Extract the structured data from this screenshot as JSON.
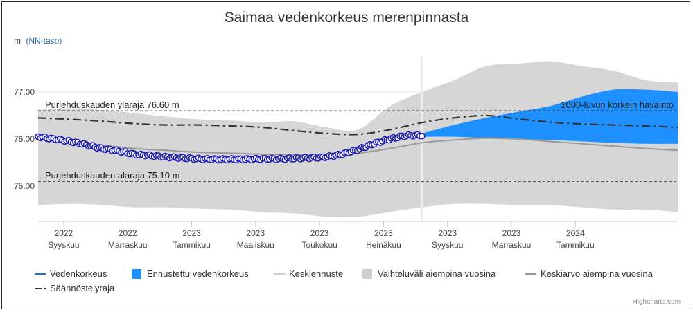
{
  "chart_data": {
    "type": "area",
    "title": "Saimaa vedenkorkeus merenpinnasta",
    "yunit": "m",
    "yunit_note": "(NN-taso)",
    "ylim": [
      74.25,
      77.75
    ],
    "yticks": [
      "75.00",
      "76.00",
      "77.00"
    ],
    "ytick_values": [
      75.0,
      76.0,
      77.0
    ],
    "x_range_months": [
      0,
      20
    ],
    "x_months": [
      0,
      1,
      2,
      3,
      4,
      5,
      6,
      7,
      8,
      9,
      10,
      11,
      12,
      13,
      14,
      15,
      16,
      17,
      18,
      19,
      20
    ],
    "xticks": [
      {
        "year": "2022",
        "month": "Syyskuu"
      },
      {
        "year": "2022",
        "month": "Marraskuu"
      },
      {
        "year": "2023",
        "month": "Tammikuu"
      },
      {
        "year": "2023",
        "month": "Maaliskuu"
      },
      {
        "year": "2023",
        "month": "Toukokuu"
      },
      {
        "year": "2023",
        "month": "Heinäkuu"
      },
      {
        "year": "2023",
        "month": "Syyskuu"
      },
      {
        "year": "2023",
        "month": "Marraskuu"
      },
      {
        "year": "2024",
        "month": "Tammikuu"
      }
    ],
    "xtick_months": [
      0.8,
      2.8,
      4.8,
      6.8,
      8.8,
      10.8,
      12.8,
      14.8,
      16.8
    ],
    "today_month": 12.0,
    "range_upper": [
      76.62,
      76.65,
      76.62,
      76.55,
      76.48,
      76.42,
      76.4,
      76.35,
      76.38,
      76.25,
      76.2,
      76.7,
      77.0,
      77.25,
      77.55,
      77.6,
      77.65,
      77.55,
      77.45,
      77.25,
      77.2
    ],
    "range_lower": [
      74.6,
      74.62,
      74.6,
      74.55,
      74.55,
      74.52,
      74.5,
      74.45,
      74.42,
      74.35,
      74.35,
      74.45,
      74.55,
      74.62,
      74.62,
      74.6,
      74.6,
      74.55,
      74.5,
      74.5,
      74.45
    ],
    "average": [
      76.03,
      75.95,
      75.87,
      75.8,
      75.76,
      75.72,
      75.7,
      75.68,
      75.67,
      75.67,
      75.7,
      75.8,
      75.92,
      75.98,
      76.02,
      76.0,
      75.95,
      75.9,
      75.85,
      75.8,
      75.76
    ],
    "regulation_curve": [
      76.45,
      76.42,
      76.38,
      76.33,
      76.3,
      76.3,
      76.28,
      76.25,
      76.18,
      76.12,
      76.1,
      76.2,
      76.35,
      76.45,
      76.5,
      76.43,
      76.36,
      76.32,
      76.3,
      76.28,
      76.25
    ],
    "observed_months": [
      0,
      0.5,
      1,
      1.5,
      2,
      2.5,
      3,
      3.5,
      4,
      4.5,
      5,
      5.5,
      6,
      6.5,
      7,
      7.5,
      8,
      8.5,
      9,
      9.5,
      10,
      10.5,
      11,
      11.5,
      12
    ],
    "observed_levels": [
      76.05,
      76.0,
      75.95,
      75.88,
      75.8,
      75.75,
      75.68,
      75.65,
      75.62,
      75.6,
      75.58,
      75.57,
      75.57,
      75.57,
      75.58,
      75.58,
      75.59,
      75.6,
      75.62,
      75.68,
      75.78,
      75.9,
      76.0,
      76.07,
      76.08
    ],
    "forecast_months": [
      12,
      13,
      14,
      15,
      16,
      17,
      18,
      19,
      20
    ],
    "forecast_upper": [
      76.12,
      76.3,
      76.45,
      76.58,
      76.7,
      76.9,
      77.05,
      77.05,
      77.0
    ],
    "forecast_lower": [
      76.05,
      76.05,
      76.02,
      76.0,
      75.98,
      75.95,
      75.92,
      75.9,
      75.9
    ],
    "reference_lines": [
      {
        "label": "Purjehduskauden yläraja 76.60 m",
        "value": 76.6
      },
      {
        "label": "Purjehduskauden alaraja 75.10 m",
        "value": 75.1
      }
    ],
    "highest_note": "2000-luvun korkein havainto",
    "legend": [
      {
        "label": "Vedenkorkeus",
        "kind": "line",
        "color": "#1e6fd9"
      },
      {
        "label": "Ennustettu vedenkorkeus",
        "kind": "box",
        "color": "#1e90ff"
      },
      {
        "label": "Keskiennuste",
        "kind": "line",
        "color": "#cccccc",
        "muted": true
      },
      {
        "label": "Vaihteluväli aiempina vuosina",
        "kind": "box",
        "color": "#cfcfcf"
      },
      {
        "label": "Keskiarvo aiempina vuosina",
        "kind": "line",
        "color": "#999999"
      },
      {
        "label": "Säännöstelyraja",
        "kind": "dashdot",
        "color": "#333333"
      }
    ],
    "colors": {
      "range": "#d6d6d6",
      "observed": "#2020b0",
      "forecast": "#1e90ff",
      "average": "#9a9a9a",
      "regulation": "#333333",
      "grid": "#e6e6e6",
      "unit_note": "#2a6bb3"
    }
  },
  "credits": "Highcharts.com"
}
